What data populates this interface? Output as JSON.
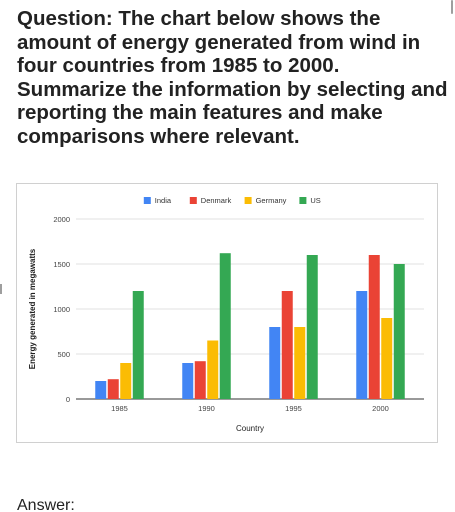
{
  "question": "Question: The chart below shows the amount of energy generated from wind in four countries from 1985 to 2000. Summarize the information by selecting and reporting the main features and make comparisons where relevant.",
  "answer_label": "Answer:",
  "chart_data": {
    "type": "bar",
    "title": "",
    "xlabel": "Country",
    "ylabel": "Energy generated in megawatts",
    "categories": [
      "1985",
      "1990",
      "1995",
      "2000"
    ],
    "series": [
      {
        "name": "India",
        "color": "#4285f4",
        "values": [
          200,
          400,
          800,
          1200
        ]
      },
      {
        "name": "Denmark",
        "color": "#ea4335",
        "values": [
          220,
          420,
          1200,
          1600
        ]
      },
      {
        "name": "Germany",
        "color": "#fbbc04",
        "values": [
          400,
          650,
          800,
          900
        ]
      },
      {
        "name": "US",
        "color": "#34a853",
        "values": [
          1200,
          1620,
          1600,
          1500
        ]
      }
    ],
    "ylim": [
      0,
      2000
    ],
    "yticks": [
      0,
      500,
      1000,
      1500,
      2000
    ],
    "grid": true,
    "legend_position": "top-center"
  }
}
